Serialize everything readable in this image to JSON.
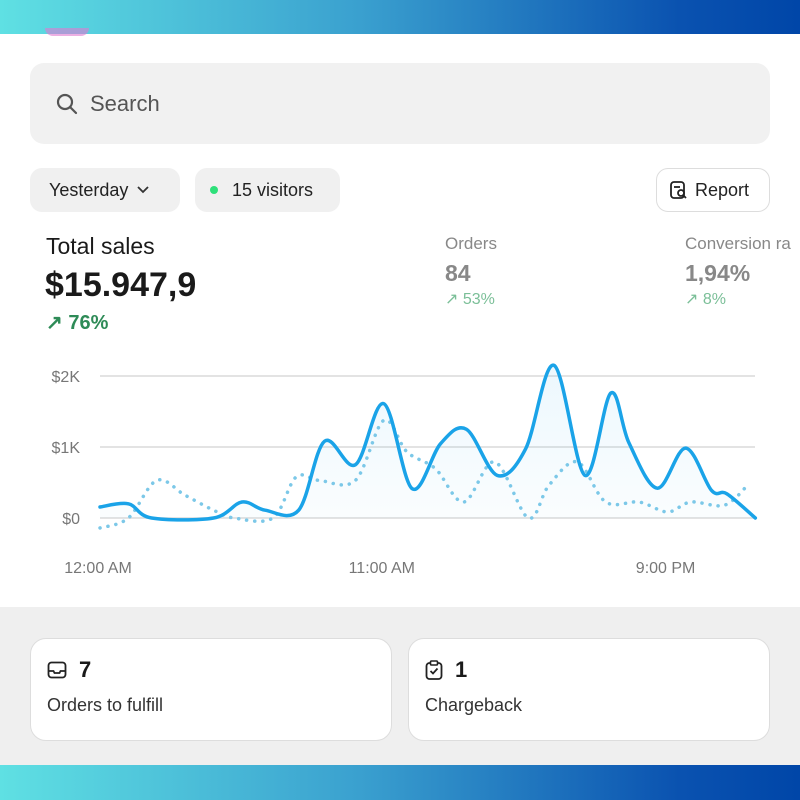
{
  "search": {
    "placeholder": "Search"
  },
  "filters": {
    "date": "Yesterday",
    "visitors": "15 visitors",
    "report": "Report"
  },
  "total_sales": {
    "label": "Total sales",
    "value": "$15.947,9",
    "delta": "76%"
  },
  "metrics": [
    {
      "label": "Orders",
      "value": "84",
      "delta": "53%"
    },
    {
      "label": "Conversion ra",
      "value": "1,94%",
      "delta": "8%"
    }
  ],
  "colors": {
    "accent": "#1aa3e8",
    "positive": "#2e8b57"
  },
  "chart_data": {
    "type": "line",
    "ylim": [
      0,
      2000
    ],
    "yticks": [
      "$0",
      "$1K",
      "$2K"
    ],
    "xticks": [
      "12:00 AM",
      "11:00 AM",
      "9:00 PM"
    ],
    "series": [
      {
        "style": "solid",
        "points": [
          [
            0,
            155
          ],
          [
            1.1,
            200
          ],
          [
            2,
            0
          ],
          [
            4.4,
            0
          ],
          [
            5.5,
            225
          ],
          [
            6.4,
            110
          ],
          [
            7.7,
            110
          ],
          [
            8.7,
            1080
          ],
          [
            9.9,
            750
          ],
          [
            11,
            1610
          ],
          [
            12.1,
            413
          ],
          [
            13.2,
            1047
          ],
          [
            14.2,
            1250
          ],
          [
            15.4,
            600
          ],
          [
            16.5,
            976
          ],
          [
            17.6,
            2150
          ],
          [
            18.8,
            600
          ],
          [
            19.8,
            1760
          ],
          [
            20.5,
            1060
          ],
          [
            21.6,
            420
          ],
          [
            22.7,
            985
          ],
          [
            23.7,
            390
          ],
          [
            24.3,
            340
          ],
          [
            25.4,
            0
          ]
        ]
      },
      {
        "style": "dotted",
        "points": [
          [
            0,
            -140
          ],
          [
            1.1,
            0
          ],
          [
            2.2,
            530
          ],
          [
            3.3,
            320
          ],
          [
            4.4,
            110
          ],
          [
            5.2,
            0
          ],
          [
            6.7,
            0
          ],
          [
            7.6,
            577
          ],
          [
            8.5,
            530
          ],
          [
            9.9,
            530
          ],
          [
            11,
            1375
          ],
          [
            11.9,
            930
          ],
          [
            13,
            695
          ],
          [
            14.1,
            225
          ],
          [
            15.3,
            790
          ],
          [
            16.6,
            0
          ],
          [
            17.4,
            460
          ],
          [
            18.5,
            790
          ],
          [
            19.6,
            225
          ],
          [
            20.9,
            225
          ],
          [
            22,
            85
          ],
          [
            22.9,
            225
          ],
          [
            24.2,
            180
          ],
          [
            25.1,
            460
          ]
        ]
      }
    ]
  },
  "cards": [
    {
      "count": "7",
      "label": "Orders to fulfill",
      "icon": "inbox-icon"
    },
    {
      "count": "1",
      "label": "Chargeback",
      "icon": "clipboard-check-icon"
    }
  ]
}
